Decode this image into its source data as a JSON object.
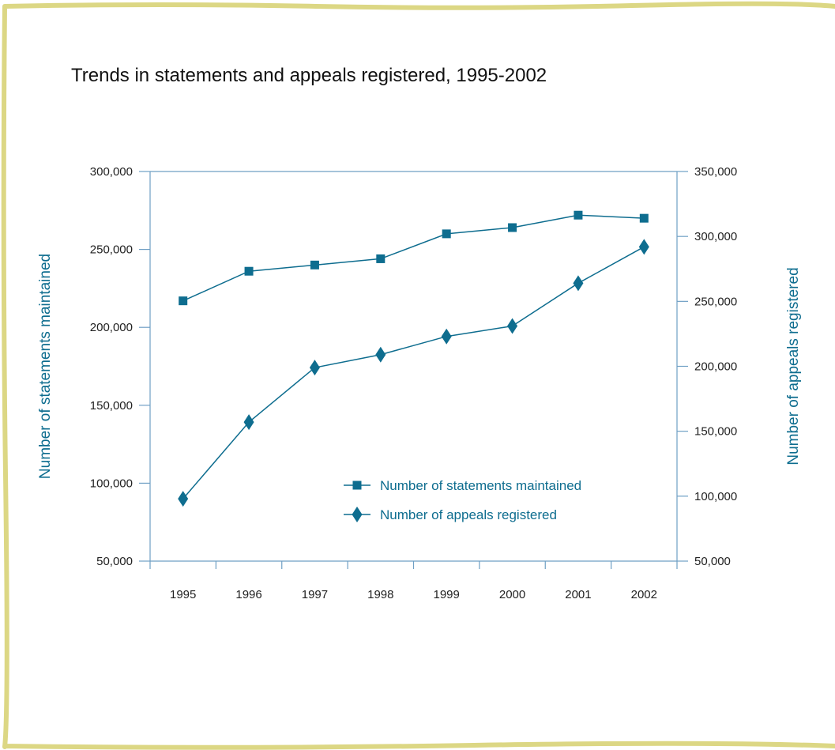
{
  "colors": {
    "series": "#0e6d8f",
    "axis": "#6f9fc4",
    "frame": "#dcd784",
    "text": "#222222"
  },
  "chart_data": {
    "type": "line",
    "title": "Trends in statements and appeals registered, 1995-2002",
    "categories": [
      "1995",
      "1996",
      "1997",
      "1998",
      "1999",
      "2000",
      "2001",
      "2002"
    ],
    "y_left": {
      "label": "Number of statements maintained",
      "ylim": [
        50000,
        300000
      ],
      "ticks": [
        50000,
        100000,
        150000,
        200000,
        250000,
        300000
      ],
      "tick_labels": [
        "50,000",
        "100,000",
        "150,000",
        "200,000",
        "250,000",
        "300,000"
      ]
    },
    "y_right": {
      "label": "Number of appeals registered",
      "ylim": [
        50000,
        350000
      ],
      "ticks": [
        50000,
        100000,
        150000,
        200000,
        250000,
        300000,
        350000
      ],
      "tick_labels": [
        "50,000",
        "100,000",
        "150,000",
        "200,000",
        "250,000",
        "300,000",
        "350,000"
      ]
    },
    "series": [
      {
        "name": "Number of statements maintained",
        "axis": "left",
        "marker": "square",
        "values": [
          217000,
          236000,
          240000,
          244000,
          260000,
          264000,
          272000,
          270000
        ]
      },
      {
        "name": "Number of appeals registered",
        "axis": "right",
        "marker": "diamond",
        "values": [
          98000,
          157000,
          199000,
          209000,
          223000,
          231000,
          264000,
          292000
        ]
      }
    ],
    "legend": {
      "placement": "bottom-center-inside"
    },
    "grid": false
  }
}
